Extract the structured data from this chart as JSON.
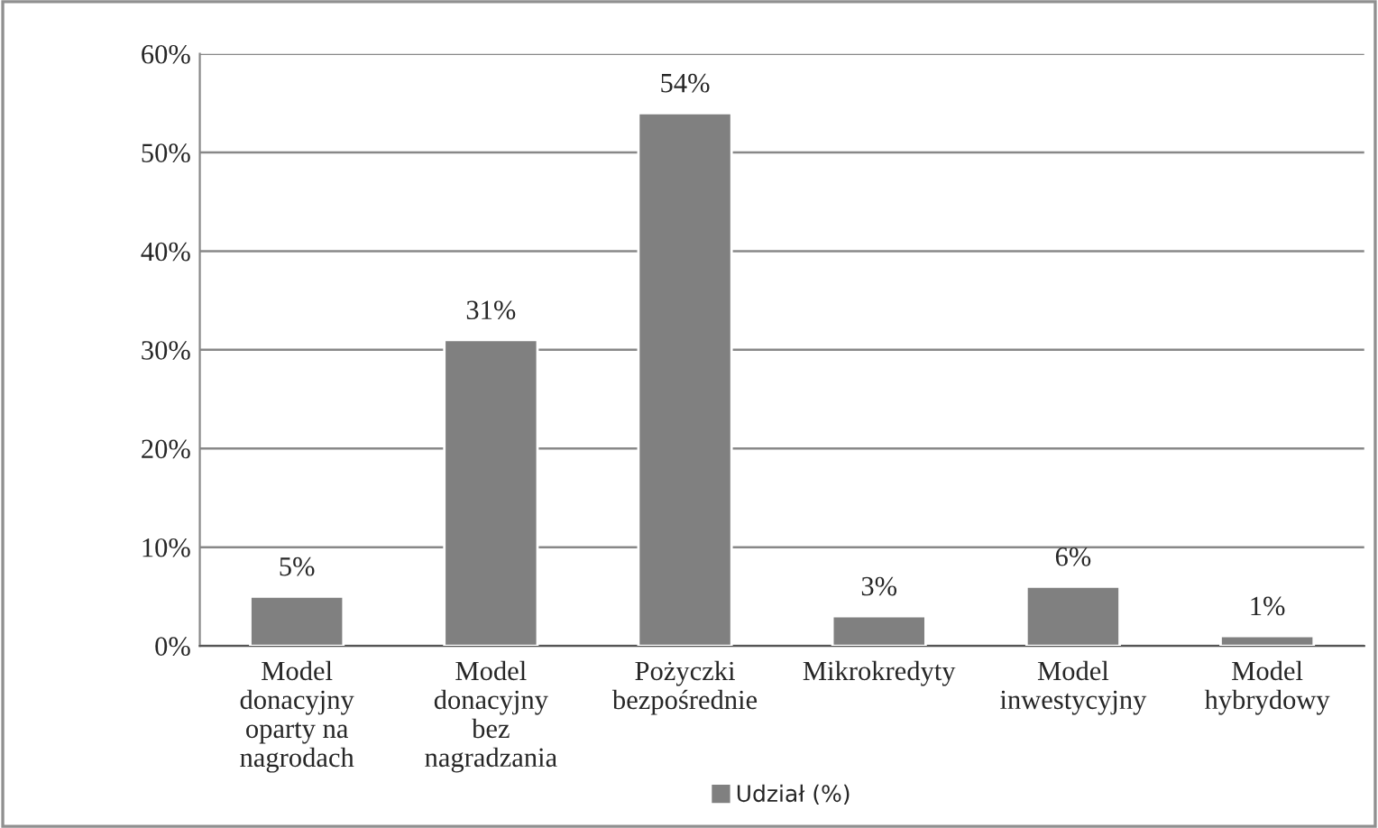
{
  "chart_data": {
    "type": "bar",
    "categories": [
      "Model donacyjny oparty na nagrodach",
      "Model donacyjny bez nagradzania",
      "Pożyczki bezpośrednie",
      "Mikrokredyty",
      "Model inwestycyjny",
      "Model hybrydowy"
    ],
    "series": [
      {
        "name": "Udział (%)",
        "color": "#808080",
        "values": [
          5,
          31,
          54,
          3,
          6,
          1
        ]
      }
    ],
    "value_labels": [
      "5%",
      "31%",
      "54%",
      "3%",
      "6%",
      "1%"
    ],
    "ylim": [
      0,
      60
    ],
    "yticks": [
      {
        "value": 0,
        "label": "0%"
      },
      {
        "value": 10,
        "label": "10%"
      },
      {
        "value": 20,
        "label": "20%"
      },
      {
        "value": 30,
        "label": "30%"
      },
      {
        "value": 40,
        "label": "40%"
      },
      {
        "value": 50,
        "label": "50%"
      },
      {
        "value": 60,
        "label": "60%"
      }
    ],
    "grid": "y",
    "legend": "bottom"
  }
}
